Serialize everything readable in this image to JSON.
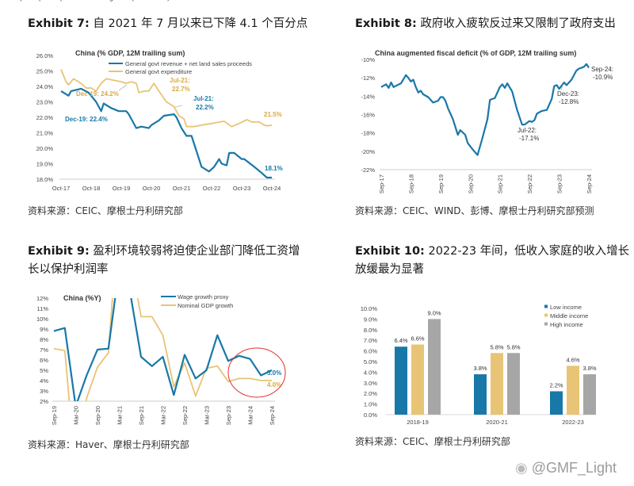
{
  "colors": {
    "blue": "#1878a8",
    "orange": "#e8c476",
    "gray": "#a6a6a6",
    "circle": "#e03030"
  },
  "panels": [
    {
      "exhibit": "Exhibit 7:",
      "title": "自 2021 年 7 月以来已下降 4.1 个百分点",
      "source": "资料来源：CEIC、摩根士丹利研究部"
    },
    {
      "exhibit": "Exhibit 8:",
      "title": "政府收入疲软反过来又限制了政府支出",
      "source": "资料来源：CEIC、WIND、彭博、摩根士丹利研究部预测"
    },
    {
      "exhibit": "Exhibit 9:",
      "title": "盈利环境较弱将迫使企业部门降低工资增",
      "title2": "长以保护利润率",
      "source": "资料来源：Haver、摩根士丹利研究部"
    },
    {
      "exhibit": "Exhibit 10:",
      "title": "2022-23 年间，低收入家庭的收入增长",
      "title2": "放缓最为显著",
      "source": "资料来源：CEIC、摩根士丹利研究部"
    }
  ],
  "watermark": "@GMF_Light",
  "chart_data": [
    {
      "type": "line",
      "title": "China (% GDP, 12M trailing sum)",
      "ylim": [
        18,
        26
      ],
      "yticks": [
        "18.0%",
        "19.0%",
        "20.0%",
        "21.0%",
        "22.0%",
        "23.0%",
        "24.0%",
        "25.0%",
        "26.0%"
      ],
      "xlim": [
        "2017-10",
        "2024-10"
      ],
      "xticks": [
        "Oct-17",
        "Oct-18",
        "Oct-19",
        "Oct-20",
        "Oct-21",
        "Oct-22",
        "Oct-23",
        "Oct-24"
      ],
      "series": [
        {
          "name": "General govt revenue + net land sales proceeds",
          "color": "blue",
          "points": [
            [
              "2017-10",
              23.7
            ],
            [
              "2018-01",
              23.4
            ],
            [
              "2018-02",
              23.7
            ],
            [
              "2018-06",
              23.85
            ],
            [
              "2018-09",
              23.6
            ],
            [
              "2018-12",
              23.0
            ],
            [
              "2019-02",
              22.4
            ],
            [
              "2019-03",
              22.9
            ],
            [
              "2019-06",
              22.6
            ],
            [
              "2019-09",
              22.4
            ],
            [
              "2019-12",
              22.4
            ],
            [
              "2020-01",
              22.2
            ],
            [
              "2020-04",
              21.3
            ],
            [
              "2020-06",
              21.4
            ],
            [
              "2020-09",
              21.3
            ],
            [
              "2020-10",
              21.5
            ],
            [
              "2021-01",
              21.8
            ],
            [
              "2021-03",
              22.1
            ],
            [
              "2021-07",
              22.2
            ],
            [
              "2021-08",
              22.0
            ],
            [
              "2021-10",
              21.3
            ],
            [
              "2021-12",
              20.8
            ],
            [
              "2022-02",
              20.8
            ],
            [
              "2022-04",
              19.8
            ],
            [
              "2022-06",
              18.8
            ],
            [
              "2022-09",
              18.5
            ],
            [
              "2022-11",
              18.8
            ],
            [
              "2023-01",
              19.3
            ],
            [
              "2023-02",
              19.0
            ],
            [
              "2023-04",
              18.9
            ],
            [
              "2023-05",
              19.7
            ],
            [
              "2023-07",
              19.7
            ],
            [
              "2023-10",
              19.3
            ],
            [
              "2023-11",
              19.3
            ],
            [
              "2024-03",
              18.8
            ],
            [
              "2024-06",
              18.4
            ],
            [
              "2024-08",
              18.1
            ],
            [
              "2024-10",
              18.1
            ]
          ]
        },
        {
          "name": "General govt expenditure",
          "color": "orange",
          "points": [
            [
              "2017-10",
              25.1
            ],
            [
              "2017-12",
              24.3
            ],
            [
              "2018-01",
              24.1
            ],
            [
              "2018-03",
              24.5
            ],
            [
              "2018-06",
              24.2
            ],
            [
              "2018-08",
              23.9
            ],
            [
              "2018-10",
              23.9
            ],
            [
              "2018-12",
              23.7
            ],
            [
              "2019-02",
              24.2
            ],
            [
              "2019-04",
              24.5
            ],
            [
              "2019-07",
              24.4
            ],
            [
              "2019-10",
              24.3
            ],
            [
              "2019-12",
              24.2
            ],
            [
              "2020-02",
              24.3
            ],
            [
              "2020-04",
              24.2
            ],
            [
              "2020-05",
              23.6
            ],
            [
              "2020-07",
              23.7
            ],
            [
              "2020-09",
              23.7
            ],
            [
              "2020-11",
              24.2
            ],
            [
              "2021-01",
              23.7
            ],
            [
              "2021-04",
              23.0
            ],
            [
              "2021-07",
              22.7
            ],
            [
              "2021-09",
              22.1
            ],
            [
              "2021-11",
              21.9
            ],
            [
              "2021-12",
              21.4
            ],
            [
              "2022-03",
              21.4
            ],
            [
              "2022-06",
              21.5
            ],
            [
              "2022-10",
              21.6
            ],
            [
              "2023-03",
              21.75
            ],
            [
              "2023-06",
              21.4
            ],
            [
              "2023-09",
              21.6
            ],
            [
              "2023-12",
              21.85
            ],
            [
              "2024-02",
              21.7
            ],
            [
              "2024-05",
              21.7
            ],
            [
              "2024-07",
              21.5
            ],
            [
              "2024-08",
              21.45
            ],
            [
              "2024-10",
              21.5
            ]
          ]
        }
      ],
      "annotations": [
        {
          "text": "Dec-19: 24.2%",
          "color": "orange"
        },
        {
          "text": "Jul-21:",
          "text2": "22.7%",
          "color": "orange"
        },
        {
          "text": "Jul-21:",
          "text2": "22.2%",
          "color": "blue"
        },
        {
          "text": "Dec-19: 22.4%",
          "color": "blue"
        },
        {
          "text": "21.5%",
          "color": "orange"
        },
        {
          "text": "18.1%",
          "color": "blue"
        }
      ],
      "legend": "top-right"
    },
    {
      "type": "line",
      "title": "China augmented fiscal deficit (% of GDP, 12M trailing sum)",
      "ylim": [
        -22,
        -10
      ],
      "yticks": [
        "-22%",
        "-20%",
        "-18%",
        "-16%",
        "-14%",
        "-12%",
        "-10%"
      ],
      "xlim": [
        "2017-09",
        "2024-09"
      ],
      "xticks": [
        "Sep-17",
        "Sep-18",
        "Sep-19",
        "Sep-20",
        "Sep-21",
        "Sep-22",
        "Sep-23",
        "Sep-24"
      ],
      "series": [
        {
          "color": "blue",
          "points": [
            [
              "2017-09",
              -13.0
            ],
            [
              "2017-11",
              -12.7
            ],
            [
              "2017-12",
              -13.1
            ],
            [
              "2018-01",
              -12.5
            ],
            [
              "2018-02",
              -13.0
            ],
            [
              "2018-05",
              -12.6
            ],
            [
              "2018-07",
              -11.7
            ],
            [
              "2018-08",
              -12.0
            ],
            [
              "2018-09",
              -12.4
            ],
            [
              "2018-10",
              -12.2
            ],
            [
              "2018-11",
              -13.0
            ],
            [
              "2018-12",
              -13.6
            ],
            [
              "2019-01",
              -13.4
            ],
            [
              "2019-02",
              -13.8
            ],
            [
              "2019-04",
              -14.1
            ],
            [
              "2019-06",
              -14.7
            ],
            [
              "2019-08",
              -14.5
            ],
            [
              "2019-09",
              -14.1
            ],
            [
              "2019-10",
              -14.1
            ],
            [
              "2019-11",
              -14.5
            ],
            [
              "2019-12",
              -15.3
            ],
            [
              "2020-02",
              -16.5
            ],
            [
              "2020-04",
              -18.2
            ],
            [
              "2020-05",
              -17.7
            ],
            [
              "2020-07",
              -18.2
            ],
            [
              "2020-08",
              -19.1
            ],
            [
              "2020-10",
              -19.8
            ],
            [
              "2020-12",
              -20.4
            ],
            [
              "2021-02",
              -18.5
            ],
            [
              "2021-04",
              -16.5
            ],
            [
              "2021-05",
              -14.4
            ],
            [
              "2021-07",
              -14.2
            ],
            [
              "2021-09",
              -13.0
            ],
            [
              "2021-10",
              -12.7
            ],
            [
              "2021-11",
              -13.1
            ],
            [
              "2021-12",
              -12.6
            ],
            [
              "2022-02",
              -13.5
            ],
            [
              "2022-04",
              -15.5
            ],
            [
              "2022-06",
              -17.1
            ],
            [
              "2022-07",
              -17.1
            ],
            [
              "2022-09",
              -16.7
            ],
            [
              "2022-10",
              -16.8
            ],
            [
              "2022-11",
              -16.6
            ],
            [
              "2022-12",
              -15.9
            ],
            [
              "2023-02",
              -15.6
            ],
            [
              "2023-04",
              -15.5
            ],
            [
              "2023-06",
              -14.3
            ],
            [
              "2023-07",
              -12.9
            ],
            [
              "2023-08",
              -12.8
            ],
            [
              "2023-09",
              -13.2
            ],
            [
              "2023-11",
              -12.5
            ],
            [
              "2023-12",
              -12.8
            ],
            [
              "2024-02",
              -12.2
            ],
            [
              "2024-04",
              -11.2
            ],
            [
              "2024-05",
              -11.0
            ],
            [
              "2024-07",
              -10.8
            ],
            [
              "2024-08",
              -10.5
            ],
            [
              "2024-09",
              -10.9
            ]
          ]
        }
      ],
      "annotations": [
        {
          "text": "Sep-24:",
          "text2": "-10.9%"
        },
        {
          "text": "Dec-23:",
          "text2": "-12.8%"
        },
        {
          "text": "Jul-22:",
          "text2": "-17.1%"
        }
      ]
    },
    {
      "type": "line",
      "title": "China (%Y)",
      "ylim": [
        2,
        12
      ],
      "yticks": [
        "2%",
        "3%",
        "4%",
        "5%",
        "6%",
        "7%",
        "8%",
        "9%",
        "10%",
        "11%",
        "12%"
      ],
      "xlim": [
        "2019-09",
        "2024-09"
      ],
      "xticks": [
        "Sep-19",
        "Mar-20",
        "Sep-20",
        "Mar-21",
        "Sep-21",
        "Mar-22",
        "Sep-22",
        "Mar-23",
        "Sep-23",
        "Mar-24",
        "Sep-24"
      ],
      "series": [
        {
          "name": "Wage growth proxy",
          "color": "blue",
          "points": [
            [
              "2019-09",
              8.8
            ],
            [
              "2019-12",
              9.1
            ],
            [
              "2020-03",
              1.5
            ],
            [
              "2020-06",
              4.5
            ],
            [
              "2020-09",
              7.0
            ],
            [
              "2020-12",
              7.1
            ],
            [
              "2021-03",
              15
            ],
            [
              "2021-06",
              12.5
            ],
            [
              "2021-09",
              6.3
            ],
            [
              "2021-12",
              5.4
            ],
            [
              "2022-03",
              6.3
            ],
            [
              "2022-06",
              2.6
            ],
            [
              "2022-09",
              6.5
            ],
            [
              "2022-12",
              4.2
            ],
            [
              "2023-03",
              5.0
            ],
            [
              "2023-06",
              8.4
            ],
            [
              "2023-09",
              5.9
            ],
            [
              "2023-12",
              6.4
            ],
            [
              "2024-03",
              6.1
            ],
            [
              "2024-06",
              4.5
            ],
            [
              "2024-09",
              5.0
            ]
          ]
        },
        {
          "name": "Nominal GDP growth",
          "color": "orange",
          "points": [
            [
              "2019-09",
              7.1
            ],
            [
              "2019-12",
              6.9
            ],
            [
              "2020-03",
              -5
            ],
            [
              "2020-06",
              2.3
            ],
            [
              "2020-09",
              5.3
            ],
            [
              "2020-12",
              6.7
            ],
            [
              "2021-03",
              21
            ],
            [
              "2021-06",
              16
            ],
            [
              "2021-09",
              10.2
            ],
            [
              "2021-12",
              10.2
            ],
            [
              "2022-03",
              8.4
            ],
            [
              "2022-06",
              3.4
            ],
            [
              "2022-09",
              5.7
            ],
            [
              "2022-12",
              2.5
            ],
            [
              "2023-03",
              5.2
            ],
            [
              "2023-06",
              5.4
            ],
            [
              "2023-09",
              3.9
            ],
            [
              "2023-12",
              4.2
            ],
            [
              "2024-03",
              4.2
            ],
            [
              "2024-06",
              4.0
            ],
            [
              "2024-09",
              4.0
            ]
          ]
        }
      ],
      "annotations": [
        {
          "text": "5.0%",
          "color": "blue"
        },
        {
          "text": "4.0%",
          "color": "orange"
        }
      ],
      "legend": "top-right"
    },
    {
      "type": "bar",
      "title": "Urban per capita disposable income growth (%2YCAGR)",
      "ylim": [
        0,
        10
      ],
      "yticks": [
        "0.0%",
        "1.0%",
        "2.0%",
        "3.0%",
        "4.0%",
        "5.0%",
        "6.0%",
        "7.0%",
        "8.0%",
        "9.0%",
        "10.0%"
      ],
      "categories": [
        "2018-19",
        "2020-21",
        "2022-23"
      ],
      "series": [
        {
          "name": "Low income",
          "color": "blue",
          "values": [
            6.4,
            3.8,
            2.2
          ],
          "labels": [
            "6.4%",
            "3.8%",
            "2.2%"
          ]
        },
        {
          "name": "Middle income",
          "color": "orange",
          "values": [
            6.6,
            5.8,
            4.6
          ],
          "labels": [
            "6.6%",
            "5.8%",
            "4.6%"
          ]
        },
        {
          "name": "High income",
          "color": "gray",
          "values": [
            9.0,
            5.8,
            3.8
          ],
          "labels": [
            "9.0%",
            "5.8%",
            "3.8%"
          ]
        }
      ],
      "legend": "top-right"
    }
  ]
}
